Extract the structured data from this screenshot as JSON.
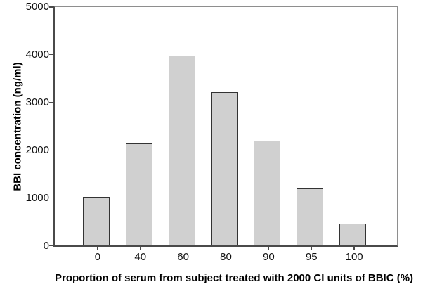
{
  "chart_data": {
    "type": "bar",
    "title": "",
    "categories": [
      "0",
      "40",
      "60",
      "80",
      "90",
      "95",
      "100"
    ],
    "values": [
      1020,
      2140,
      3970,
      3210,
      2190,
      1190,
      460
    ],
    "xlabel": "Proportion of serum from subject treated with 2000 CI units of BBIC (%)",
    "ylabel": "BBI concentration (ng/ml)",
    "ylim": [
      0,
      5000
    ],
    "yticks": [
      0,
      1000,
      2000,
      3000,
      4000,
      5000
    ],
    "grid": false,
    "legend": null,
    "colors": {
      "bar_fill": "#d0d0d0",
      "bar_border": "#333333",
      "axis": "#4a4a4a",
      "frame": "#8e8e8e",
      "text": "#000000"
    }
  }
}
